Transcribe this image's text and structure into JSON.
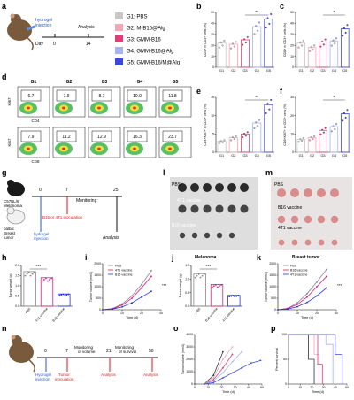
{
  "panels": {
    "a": {
      "letter": "a",
      "injection": "hydrogel\ninjection",
      "day_label": "Day",
      "d0": "0",
      "d14": "14",
      "analysis": "Analysis",
      "legend": [
        {
          "code": "G1: PBS",
          "color": "#c8c8c8"
        },
        {
          "code": "G2: M-B16@Alg",
          "color": "#f4a6b6"
        },
        {
          "code": "G3: GMM-B16",
          "color": "#e13b7a"
        },
        {
          "code": "G4: GMM-B16@Alg",
          "color": "#a8b3f2"
        },
        {
          "code": "G5: GMM-B16/M@Alg",
          "color": "#3b48e0"
        }
      ]
    },
    "b": {
      "letter": "b",
      "ylabel": "CD4+ in CD3+ cells (%)",
      "yticks": [
        "0",
        "10",
        "20",
        "30",
        "40",
        "50"
      ],
      "sig": "**"
    },
    "c": {
      "letter": "c",
      "ylabel": "CD8+ in CD3+ cells (%)",
      "yticks": [
        "0",
        "10",
        "20",
        "30",
        "40",
        "50"
      ],
      "sig": "*"
    },
    "d": {
      "letter": "d",
      "groups": [
        "G1",
        "G2",
        "G3",
        "G4",
        "G5"
      ],
      "top_values": [
        "6.7",
        "7.9",
        "8.7",
        "10.0",
        "11.8"
      ],
      "bottom_values": [
        "7.9",
        "11.2",
        "12.9",
        "16.3",
        "23.7"
      ],
      "y_top": "Ki67",
      "y_bottom": "Ki67",
      "x_top": "CD4",
      "x_bottom": "CD8"
    },
    "e": {
      "letter": "e",
      "ylabel": "CD4+Ki67+ in CD3+ cells (%)",
      "yticks": [
        "0",
        "5",
        "10",
        "15"
      ],
      "sig": "**"
    },
    "f": {
      "letter": "f",
      "ylabel": "CD8+Ki67+ in CD3+ cells (%)",
      "yticks": [
        "0",
        "10",
        "20",
        "30"
      ],
      "sig": "*"
    },
    "g": {
      "letter": "g",
      "mouse1": "C57BL/6\nMelanoma",
      "mouse2": "balb/c\nBreast\ntumor",
      "d0": "0",
      "d7": "7",
      "d25": "25",
      "monitoring": "Monitoring",
      "inoculation": "B16 or 4T1 inoculation",
      "injection": "hydrogel\ninjection",
      "analysis": "Analysis"
    },
    "l": {
      "letter": "l",
      "labels": [
        "PBS",
        "4T1 vaccine",
        "B16 vaccine"
      ],
      "caption": "Melanoma"
    },
    "m": {
      "letter": "m",
      "labels": [
        "PBS",
        "B16 vaccine",
        "4T1 vaccine"
      ],
      "caption": "Breast tumor"
    },
    "h": {
      "letter": "h",
      "ylabel": "Tumor weight (g)",
      "yticks": [
        "0.0",
        "0.5",
        "1.0",
        "1.5",
        "2.0"
      ],
      "xcats": [
        "PBS",
        "4T1 vaccine",
        "B16 vaccine"
      ],
      "sig": "***"
    },
    "i": {
      "letter": "i",
      "ylabel": "Tumor volume (mm3)",
      "xlabel": "Time (d)",
      "xticks": [
        "0",
        "10",
        "20",
        "30"
      ],
      "yticks": [
        "0",
        "500",
        "1000",
        "1500",
        "2000"
      ],
      "legend": [
        "PBS",
        "4T1 vaccine",
        "B16 vaccine"
      ],
      "sig": "***"
    },
    "j": {
      "letter": "j",
      "ylabel": "Tumor weight (g)",
      "yticks": [
        "0.0",
        "0.5",
        "1.0",
        "1.5"
      ],
      "xcats": [
        "PBS",
        "B16 vaccine",
        "4T1 vaccine"
      ],
      "sig": "***"
    },
    "k": {
      "letter": "k",
      "ylabel": "Tumor volume (mm3)",
      "xlabel": "Time (d)",
      "xticks": [
        "0",
        "10",
        "20",
        "30"
      ],
      "yticks": [
        "0",
        "500",
        "1000",
        "1500",
        "2000"
      ],
      "legend": [
        "PBS",
        "B16 vaccine",
        "4T1 vaccine"
      ],
      "sig": "***"
    },
    "n": {
      "letter": "n",
      "injection": "Hydrogel\ninjection",
      "inoculation": "Tumor\ninoculation",
      "d0": "0",
      "d7": "7",
      "d21": "21",
      "d50": "50",
      "mon_volume": "Monitoring\nof volume",
      "mon_survival": "Monitoring\nof survival",
      "analysis1": "Analysis",
      "analysis2": "Analysis"
    },
    "o": {
      "letter": "o",
      "ylabel": "Tumor volume (mm3)",
      "xlabel": "Time (d)",
      "xticks": [
        "0",
        "10",
        "20",
        "30",
        "40",
        "50"
      ],
      "yticks": [
        "0",
        "1000",
        "2000",
        "3000",
        "4000"
      ]
    },
    "p": {
      "letter": "p",
      "ylabel": "Percent survival",
      "xlabel": "Time (d)",
      "xticks": [
        "0",
        "10",
        "20",
        "30",
        "40",
        "50"
      ],
      "yticks": [
        "0",
        "50",
        "100"
      ]
    }
  },
  "chart_data": [
    {
      "type": "bar",
      "panel": "b",
      "categories": [
        "G1",
        "G2",
        "G3",
        "G4",
        "G5"
      ],
      "values": [
        22,
        21,
        25,
        37,
        44
      ],
      "ylabel": "CD4+ in CD3+ cells (%)",
      "ylim": [
        0,
        50
      ]
    },
    {
      "type": "bar",
      "panel": "c",
      "categories": [
        "G1",
        "G2",
        "G3",
        "G4",
        "G5"
      ],
      "values": [
        22,
        18,
        23,
        24,
        35
      ],
      "ylabel": "CD8+ in CD3+ cells (%)",
      "ylim": [
        0,
        50
      ]
    },
    {
      "type": "bar",
      "panel": "e",
      "categories": [
        "G1",
        "G2",
        "G3",
        "G4",
        "G5"
      ],
      "values": [
        3,
        4,
        5,
        8,
        13
      ],
      "ylabel": "CD4+Ki67+ in CD3+ cells (%)",
      "ylim": [
        0,
        15
      ]
    },
    {
      "type": "bar",
      "panel": "f",
      "categories": [
        "G1",
        "G2",
        "G3",
        "G4",
        "G5"
      ],
      "values": [
        7,
        8,
        12,
        14,
        21
      ],
      "ylabel": "CD8+Ki67+ in CD3+ cells (%)",
      "ylim": [
        0,
        30
      ]
    },
    {
      "type": "bar",
      "panel": "h",
      "categories": [
        "PBS",
        "4T1 vaccine",
        "B16 vaccine"
      ],
      "values": [
        1.7,
        1.4,
        0.6
      ],
      "ylabel": "Tumor weight (g)",
      "ylim": [
        0,
        2
      ]
    },
    {
      "type": "bar",
      "panel": "j",
      "categories": [
        "PBS",
        "B16 vaccine",
        "4T1 vaccine"
      ],
      "values": [
        1.2,
        0.8,
        0.4
      ],
      "ylabel": "Tumor weight (g)",
      "ylim": [
        0,
        1.5
      ]
    },
    {
      "type": "line",
      "panel": "i",
      "x": [
        0,
        5,
        10,
        15,
        20,
        25
      ],
      "series": [
        {
          "name": "PBS",
          "values": [
            0,
            50,
            250,
            600,
            1100,
            1700
          ]
        },
        {
          "name": "4T1 vaccine",
          "values": [
            0,
            40,
            200,
            500,
            950,
            1450
          ]
        },
        {
          "name": "B16 vaccine",
          "values": [
            0,
            30,
            120,
            300,
            550,
            800
          ]
        }
      ],
      "xlabel": "Time (d)",
      "ylabel": "Tumor volume (mm3)",
      "xlim": [
        0,
        30
      ],
      "ylim": [
        0,
        2000
      ]
    },
    {
      "type": "line",
      "panel": "k",
      "x": [
        0,
        5,
        10,
        15,
        20,
        25
      ],
      "series": [
        {
          "name": "PBS",
          "values": [
            0,
            60,
            300,
            700,
            1200,
            1750
          ]
        },
        {
          "name": "B16 vaccine",
          "values": [
            0,
            50,
            230,
            550,
            1000,
            1450
          ]
        },
        {
          "name": "4T1 vaccine",
          "values": [
            0,
            30,
            130,
            320,
            600,
            950
          ]
        }
      ],
      "xlabel": "Time (d)",
      "ylabel": "Tumor volume (mm3)",
      "xlim": [
        0,
        30
      ],
      "ylim": [
        0,
        2000
      ]
    },
    {
      "type": "line",
      "panel": "o",
      "x": [
        7,
        14,
        21,
        28,
        35,
        42,
        49
      ],
      "series": [
        {
          "values": [
            0,
            700,
            2600,
            0,
            0,
            0,
            0
          ]
        },
        {
          "values": [
            0,
            500,
            2000,
            3000,
            0,
            0,
            0
          ]
        },
        {
          "values": [
            0,
            350,
            1300,
            2400,
            0,
            0,
            0
          ]
        },
        {
          "values": [
            0,
            250,
            900,
            1800,
            2600,
            0,
            0
          ]
        },
        {
          "values": [
            0,
            120,
            500,
            900,
            1300,
            1700,
            1900
          ]
        }
      ],
      "xlabel": "Time (d)",
      "ylabel": "Tumor volume (mm3)",
      "xlim": [
        0,
        50
      ],
      "ylim": [
        0,
        4000
      ]
    },
    {
      "type": "line",
      "panel": "p",
      "series": [
        {
          "x": [
            0,
            17,
            17,
            22,
            22
          ],
          "values": [
            100,
            100,
            50,
            50,
            0
          ]
        },
        {
          "x": [
            0,
            22,
            22,
            26,
            26
          ],
          "values": [
            100,
            100,
            60,
            60,
            0
          ]
        },
        {
          "x": [
            0,
            25,
            25,
            29,
            29
          ],
          "values": [
            100,
            100,
            40,
            40,
            0
          ]
        },
        {
          "x": [
            0,
            32,
            32,
            38,
            38
          ],
          "values": [
            100,
            100,
            80,
            80,
            0
          ]
        },
        {
          "x": [
            0,
            40,
            40,
            46,
            46
          ],
          "values": [
            100,
            100,
            60,
            60,
            0
          ]
        }
      ],
      "xlabel": "Time (d)",
      "ylabel": "Percent survival",
      "xlim": [
        0,
        50
      ],
      "ylim": [
        0,
        100
      ]
    }
  ],
  "colors": {
    "g1": "#c8c8c8",
    "g2": "#f4a6b6",
    "g3": "#e13b7a",
    "g4": "#a8b3f2",
    "g5": "#3b48e0",
    "pbs": "#888888",
    "red": "#e0197a",
    "blue": "#2430d8",
    "arrow_blue": "#2a55d8",
    "arrow_red": "#e01818"
  }
}
